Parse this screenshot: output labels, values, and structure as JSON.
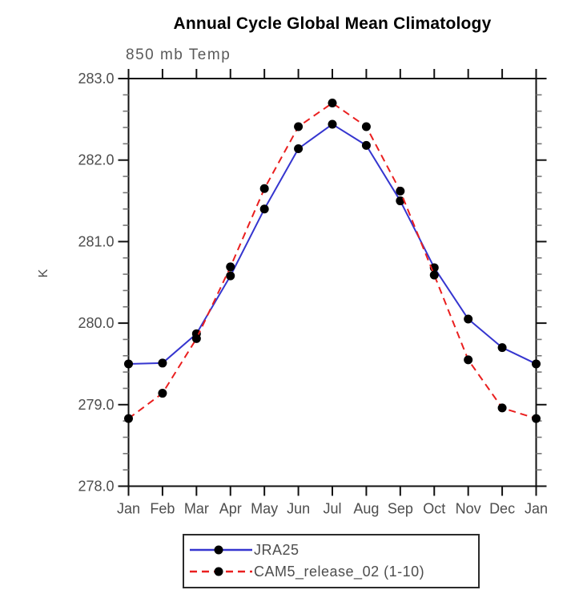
{
  "chart_data": {
    "type": "line",
    "title": "Annual Cycle Global Mean Climatology",
    "subtitle": "850 mb Temp",
    "ylabel": "K",
    "x_categories": [
      "Jan",
      "Feb",
      "Mar",
      "Apr",
      "May",
      "Jun",
      "Jul",
      "Aug",
      "Sep",
      "Oct",
      "Nov",
      "Dec",
      "Jan"
    ],
    "ylim": [
      278.0,
      283.0
    ],
    "y_tick_labels": [
      "278.0",
      "279.0",
      "280.0",
      "281.0",
      "282.0",
      "283.0"
    ],
    "y_major_ticks": [
      278.0,
      279.0,
      280.0,
      281.0,
      282.0,
      283.0
    ],
    "y_minor_step": 0.2,
    "grid": false,
    "legend_position": "bottom-center",
    "axis_color": "#111111",
    "minor_tick_color": "#777777",
    "tick_label_color": "#4d4d4d",
    "marker_color": "#000000",
    "series": [
      {
        "name": "JRA25",
        "color": "#3535cf",
        "style": "solid",
        "marker": "circle",
        "values": [
          279.5,
          279.51,
          279.87,
          280.58,
          281.4,
          282.14,
          282.44,
          282.18,
          281.5,
          280.68,
          280.05,
          279.7,
          279.5
        ]
      },
      {
        "name": "CAM5_release_02 (1-10)",
        "color": "#ea1f1f",
        "style": "dashed",
        "marker": "circle",
        "values": [
          278.83,
          279.14,
          279.81,
          280.69,
          281.65,
          282.41,
          282.7,
          282.41,
          281.62,
          280.59,
          279.55,
          278.96,
          278.83
        ]
      }
    ]
  }
}
